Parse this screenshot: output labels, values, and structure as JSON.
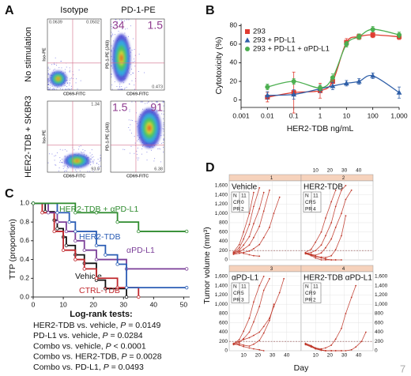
{
  "page_number": 7,
  "chart_data": [
    {
      "type": "density",
      "panel": "A",
      "columns": [
        "Isotype",
        "PD-1-PE"
      ],
      "rows": [
        "No stimulation",
        "HER2-TDB + SKBR3"
      ],
      "plots": [
        {
          "x_label": "CD69-FITC",
          "y_label": "Iso-PE",
          "quadrants": {
            "tl": 0.0639,
            "tr": 0.0502
          }
        },
        {
          "x_label": "CD69-FITC",
          "y_label": "PD-1-PE (J43)",
          "quadrants": {
            "tl": 34,
            "tr": 1.5,
            "br": 0.473
          }
        },
        {
          "x_label": "CD69-FITC",
          "y_label": "Iso-PE",
          "quadrants": {
            "tr": 1.34,
            "br": 93.9
          }
        },
        {
          "x_label": "CD69-FITC",
          "y_label": "PD-1-PE (J43)",
          "quadrants": {
            "tl": 1.5,
            "tr": 91,
            "br": 6.38
          }
        }
      ]
    },
    {
      "type": "line",
      "panel": "B",
      "x_label": "HER2-TDB ng/mL",
      "y_label": "Cytotoxicity (%)",
      "log_x": true,
      "xlim": [
        0.001,
        1000
      ],
      "xticks": [
        0.001,
        0.01,
        0.1,
        1,
        10,
        100,
        {
          "value": 1000,
          "label": "1,000"
        }
      ],
      "ylim": [
        -8,
        82
      ],
      "yticks": [
        0,
        20,
        40,
        60,
        80
      ],
      "legend": "top-left",
      "series": [
        {
          "name": "293",
          "color": "#e03c31",
          "marker": "square",
          "x": [
            0.01,
            0.1,
            1,
            3,
            10,
            30,
            100,
            1000
          ],
          "values": [
            3,
            8,
            10,
            20,
            62,
            68,
            70,
            68
          ],
          "errors": [
            5,
            22,
            8,
            5,
            4,
            3,
            3,
            3
          ]
        },
        {
          "name": "293 + PD-L1",
          "color": "#2f5fa8",
          "marker": "triangle",
          "x": [
            0.01,
            0.1,
            1,
            3,
            10,
            30,
            100,
            1000
          ],
          "values": [
            5,
            6,
            12,
            15,
            18,
            20,
            26,
            8
          ],
          "errors": [
            4,
            5,
            4,
            4,
            3,
            3,
            3,
            6
          ]
        },
        {
          "name": "293 + PD-L1 + αPD-L1",
          "color": "#4caf50",
          "marker": "circle",
          "x": [
            0.01,
            0.1,
            1,
            3,
            10,
            30,
            100,
            1000
          ],
          "values": [
            14,
            20,
            13,
            24,
            60,
            68,
            76,
            70
          ],
          "errors": [
            3,
            3,
            3,
            4,
            3,
            3,
            3,
            3
          ]
        }
      ]
    },
    {
      "type": "survival",
      "panel": "C",
      "y_label": "TTP (proportion)",
      "xlim": [
        0,
        52
      ],
      "xticks": [
        0,
        10,
        20,
        30,
        40,
        50
      ],
      "ylim": [
        0,
        1.02
      ],
      "yticks": [
        {
          "value": 0,
          "label": "0.0"
        },
        0.2,
        0.4,
        0.6,
        0.8,
        {
          "value": 1,
          "label": "1.0"
        }
      ],
      "series": [
        {
          "name": "Vehicle",
          "color": "#111111",
          "x": [
            0,
            4,
            7,
            8,
            10,
            11,
            14,
            17,
            21,
            24,
            31
          ],
          "values": [
            1,
            0.91,
            0.82,
            0.73,
            0.64,
            0.55,
            0.45,
            0.36,
            0.18,
            0.09,
            0
          ]
        },
        {
          "name": "CTRL-TDB",
          "color": "#c0282d",
          "x": [
            0,
            3,
            7,
            10,
            14,
            17,
            21,
            28,
            35
          ],
          "values": [
            1,
            0.9,
            0.7,
            0.5,
            0.4,
            0.3,
            0.2,
            0.1,
            0
          ]
        },
        {
          "name": "αPD-L1",
          "color": "#7b3f98",
          "x": [
            0,
            5,
            8,
            11,
            14,
            17,
            21,
            31,
            51
          ],
          "values": [
            1,
            0.9,
            0.8,
            0.7,
            0.6,
            0.5,
            0.4,
            0.3,
            0.3
          ]
        },
        {
          "name": "HER2-TDB",
          "color": "#2b5db5",
          "x": [
            0,
            8,
            12,
            14,
            21,
            24,
            28,
            31,
            51
          ],
          "values": [
            1,
            0.9,
            0.8,
            0.7,
            0.55,
            0.45,
            0.35,
            0.1,
            0.1
          ]
        },
        {
          "name": "HER2-TDB + αPD-L1",
          "color": "#2e8b2e",
          "x": [
            0,
            14,
            21,
            28,
            35,
            51
          ],
          "values": [
            1,
            0.9,
            0.9,
            0.8,
            0.7,
            0.7
          ]
        }
      ],
      "log_rank_title": "Log-rank tests:",
      "log_rank": [
        {
          "comparison": "HER2-TDB vs. vehicle, ",
          "stat": "P",
          "result": " = 0.0149"
        },
        {
          "comparison": "PD-L1 vs. vehicle, ",
          "stat": "P",
          "result": " = 0.0284"
        },
        {
          "comparison": "Combo vs. vehicle, ",
          "stat": "P",
          "result": " < 0.0001"
        },
        {
          "comparison": "Combo vs. HER2-TDB, ",
          "stat": "P",
          "result": " = 0.0028"
        },
        {
          "comparison": "Combo vs. PD-L1, ",
          "stat": "P",
          "result": " = 0.0493"
        }
      ]
    },
    {
      "type": "facets",
      "panel": "D",
      "x_label": "Day",
      "y_label": "Tumor volume (mm³)",
      "xlim": [
        0,
        50
      ],
      "xticks": [
        10,
        20,
        30,
        40
      ],
      "ylim": [
        0,
        1700
      ],
      "yticks": [
        0,
        200,
        400,
        600,
        800,
        {
          "value": 1000,
          "label": "1,000"
        },
        {
          "value": 1200,
          "label": "1,200"
        },
        {
          "value": 1400,
          "label": "1,400"
        },
        {
          "value": 1600,
          "label": "1,600"
        }
      ],
      "grid": true,
      "reference_line": 200,
      "color": "#c0392b",
      "stat_labels": [
        "N",
        "CR",
        "PR"
      ],
      "facets": [
        {
          "number": 1,
          "title": "Vehicle",
          "stats": [
            11,
            0,
            2
          ],
          "series": [
            {
              "x": [
                3,
                7,
                10,
                14,
                17,
                21
              ],
              "values": [
                150,
                260,
                450,
                760,
                1150,
                1550
              ]
            },
            {
              "x": [
                3,
                7,
                10,
                14,
                17,
                21,
                24
              ],
              "values": [
                140,
                210,
                320,
                500,
                780,
                1100,
                1450
              ]
            },
            {
              "x": [
                3,
                7,
                10,
                14,
                17,
                21,
                24,
                28
              ],
              "values": [
                130,
                170,
                230,
                320,
                480,
                720,
                1050,
                1500
              ]
            },
            {
              "x": [
                3,
                7,
                10,
                14,
                17
              ],
              "values": [
                170,
                330,
                600,
                1000,
                1450
              ]
            },
            {
              "x": [
                3,
                7,
                10,
                14,
                17,
                21,
                24,
                28,
                31,
                35
              ],
              "values": [
                120,
                140,
                160,
                190,
                240,
                330,
                480,
                700,
                1000,
                1350
              ]
            },
            {
              "x": [
                3,
                7,
                10,
                14,
                17,
                21
              ],
              "values": [
                160,
                180,
                140,
                110,
                90,
                80
              ]
            }
          ]
        },
        {
          "number": 2,
          "title": "HER2-TDB",
          "stats": [
            11,
            5,
            4
          ],
          "series": [
            {
              "x": [
                3,
                7,
                10,
                14,
                17,
                21,
                24,
                28,
                31
              ],
              "values": [
                150,
                110,
                80,
                60,
                50,
                90,
                220,
                520,
                950
              ]
            },
            {
              "x": [
                3,
                7,
                10,
                14,
                17,
                21,
                24
              ],
              "values": [
                160,
                230,
                380,
                600,
                900,
                1250,
                1500
              ]
            },
            {
              "x": [
                3,
                7,
                10,
                14,
                17,
                21,
                24
              ],
              "values": [
                140,
                90,
                40,
                0,
                0,
                0,
                0
              ]
            },
            {
              "x": [
                3,
                7,
                10,
                14,
                17,
                21,
                24,
                28,
                31,
                35
              ],
              "values": [
                150,
                120,
                100,
                150,
                260,
                450,
                700,
                1000,
                1300,
                1500
              ]
            },
            {
              "x": [
                3,
                7,
                10,
                14,
                17,
                21,
                24,
                28
              ],
              "values": [
                130,
                100,
                70,
                40,
                20,
                0,
                0,
                0
              ]
            },
            {
              "x": [
                3,
                7,
                10,
                14,
                17,
                21,
                24,
                28,
                31
              ],
              "values": [
                140,
                160,
                200,
                320,
                520,
                800,
                1150,
                1500,
                1600
              ]
            }
          ]
        },
        {
          "number": 3,
          "title": "αPD-L1",
          "stats": [
            11,
            5,
            3
          ],
          "series": [
            {
              "x": [
                3,
                7,
                10,
                14,
                17,
                21,
                24
              ],
              "values": [
                150,
                240,
                420,
                700,
                1050,
                1400,
                1600
              ]
            },
            {
              "x": [
                3,
                7,
                10,
                14,
                17,
                21,
                24,
                28
              ],
              "values": [
                140,
                180,
                260,
                400,
                620,
                950,
                1300,
                1550
              ]
            },
            {
              "x": [
                3,
                7,
                10,
                14,
                17,
                21,
                24,
                28,
                31
              ],
              "values": [
                130,
                150,
                120,
                100,
                140,
                220,
                380,
                650,
                1000
              ]
            },
            {
              "x": [
                3,
                7,
                10,
                14,
                17,
                21,
                24,
                28,
                31,
                35,
                38
              ],
              "values": [
                160,
                200,
                240,
                280,
                330,
                400,
                520,
                700,
                950,
                1250,
                1550
              ]
            },
            {
              "x": [
                3,
                7,
                10,
                14,
                17,
                21,
                24
              ],
              "values": [
                150,
                120,
                90,
                60,
                40,
                20,
                0
              ]
            }
          ]
        },
        {
          "number": 4,
          "title": "HER2-TDB αPD-L1",
          "stats": [
            11,
            9,
            2
          ],
          "series": [
            {
              "x": [
                3,
                7,
                10,
                14,
                17,
                21,
                24,
                28
              ],
              "values": [
                150,
                90,
                40,
                10,
                0,
                0,
                0,
                0
              ]
            },
            {
              "x": [
                3,
                7,
                10,
                14,
                17,
                21,
                24,
                28,
                31,
                35,
                38
              ],
              "values": [
                140,
                100,
                60,
                40,
                60,
                120,
                250,
                480,
                800,
                1150,
                1400
              ]
            },
            {
              "x": [
                3,
                7,
                10,
                14,
                17,
                21
              ],
              "values": [
                160,
                110,
                60,
                20,
                0,
                0
              ]
            },
            {
              "x": [
                3,
                7,
                10,
                14,
                17,
                21,
                24,
                28,
                31,
                35,
                38,
                42,
                45
              ],
              "values": [
                130,
                80,
                40,
                10,
                0,
                0,
                0,
                0,
                0,
                20,
                80,
                200,
                400
              ]
            },
            {
              "x": [
                3,
                7,
                10,
                14,
                17
              ],
              "values": [
                150,
                100,
                50,
                10,
                0
              ]
            }
          ]
        }
      ]
    }
  ]
}
